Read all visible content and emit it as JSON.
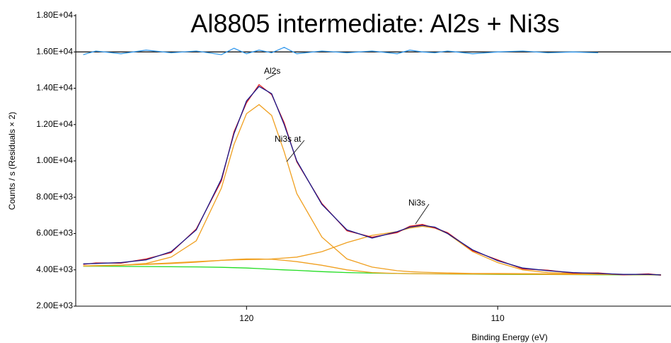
{
  "chart_data": {
    "type": "line",
    "title": "Al8805 intermediate: Al2s + Ni3s",
    "xlabel": "Binding Energy (eV)",
    "ylabel": "Counts / s  (Residuals × 2)",
    "x": [
      126.5,
      126,
      125,
      124,
      123,
      122,
      121,
      120.5,
      120,
      119.5,
      119,
      118.5,
      118,
      117,
      116,
      115,
      114,
      113.5,
      113,
      112.5,
      112,
      111,
      110,
      109,
      108,
      107,
      106,
      105,
      104,
      103.5
    ],
    "series": [
      {
        "color": "#22dd22",
        "values": [
          4200,
          4200,
          4190,
          4180,
          4170,
          4160,
          4140,
          4120,
          4100,
          4070,
          4030,
          4000,
          3970,
          3900,
          3850,
          3820,
          3800,
          3790,
          3780,
          3775,
          3770,
          3760,
          3750,
          3745,
          3740,
          3735,
          3730,
          3725,
          3720,
          3715
        ]
      },
      {
        "color": "#f0a020",
        "values": [
          4220,
          4220,
          4250,
          4350,
          4700,
          5600,
          8500,
          10900,
          12600,
          13100,
          12500,
          10500,
          8200,
          5800,
          4600,
          4150,
          3950,
          3900,
          3870,
          3850,
          3830,
          3800,
          3800,
          3790,
          3780,
          3770,
          3760,
          3750,
          3740,
          3730
        ]
      },
      {
        "color": "#f0a020",
        "values": [
          4220,
          4230,
          4260,
          4320,
          4380,
          4450,
          4520,
          4550,
          4560,
          4570,
          4600,
          4650,
          4700,
          5000,
          5500,
          5900,
          6100,
          6300,
          6400,
          6300,
          6000,
          5000,
          4400,
          4000,
          3850,
          3800,
          3770,
          3750,
          3740,
          3730
        ]
      },
      {
        "color": "#f0a020",
        "values": [
          4220,
          4230,
          4260,
          4300,
          4350,
          4420,
          4520,
          4570,
          4600,
          4600,
          4580,
          4520,
          4450,
          4250,
          4000,
          3850,
          3800,
          3790,
          3780,
          3780,
          3780,
          3770,
          3760,
          3755,
          3750,
          3745,
          3740,
          3735,
          3730,
          3725
        ]
      },
      {
        "color": "#e02020",
        "values": [
          4300,
          4380,
          4370,
          4600,
          4950,
          6250,
          8900,
          11600,
          13200,
          14200,
          13650,
          12100,
          9950,
          7650,
          6150,
          5800,
          6050,
          6400,
          6500,
          6300,
          6050,
          5050,
          4550,
          4050,
          3980,
          3820,
          3830,
          3720,
          3780,
          3700
        ]
      },
      {
        "color": "#1a1a8c",
        "values": [
          4330,
          4350,
          4400,
          4550,
          5000,
          6200,
          9000,
          11500,
          13300,
          14100,
          13700,
          12000,
          10000,
          7600,
          6200,
          5750,
          6100,
          6350,
          6450,
          6350,
          6000,
          5100,
          4500,
          4100,
          3950,
          3850,
          3800,
          3750,
          3750,
          3720
        ]
      },
      {
        "color": "#3399ee",
        "values": [
          15850,
          16050,
          15900,
          16100,
          15950,
          16050,
          15850,
          16200,
          15900,
          16100,
          15950,
          16250,
          15900,
          16050,
          15950,
          16050,
          15900,
          16100,
          16000,
          15950,
          16050,
          15900,
          16000,
          16050,
          15950,
          16000,
          15950,
          null,
          null,
          null
        ]
      }
    ],
    "reference_line": 16000,
    "annotations": [
      "Al2s",
      "Ni3s at",
      "Ni3s"
    ],
    "xlim": [
      126.8,
      103.1
    ],
    "xticks": [
      120,
      110
    ],
    "ylim": [
      2000,
      18000
    ],
    "yticks": [
      {
        "value": 2000,
        "label": "2.00E+03"
      },
      {
        "value": 4000,
        "label": "4.00E+03"
      },
      {
        "value": 6000,
        "label": "6.00E+03"
      },
      {
        "value": 8000,
        "label": "8.00E+03"
      },
      {
        "value": 10000,
        "label": "1.00E+04"
      },
      {
        "value": 12000,
        "label": "1.20E+04"
      },
      {
        "value": 14000,
        "label": "1.40E+04"
      },
      {
        "value": 16000,
        "label": "1.60E+04"
      },
      {
        "value": 18000,
        "label": "1.80E+04"
      }
    ]
  }
}
